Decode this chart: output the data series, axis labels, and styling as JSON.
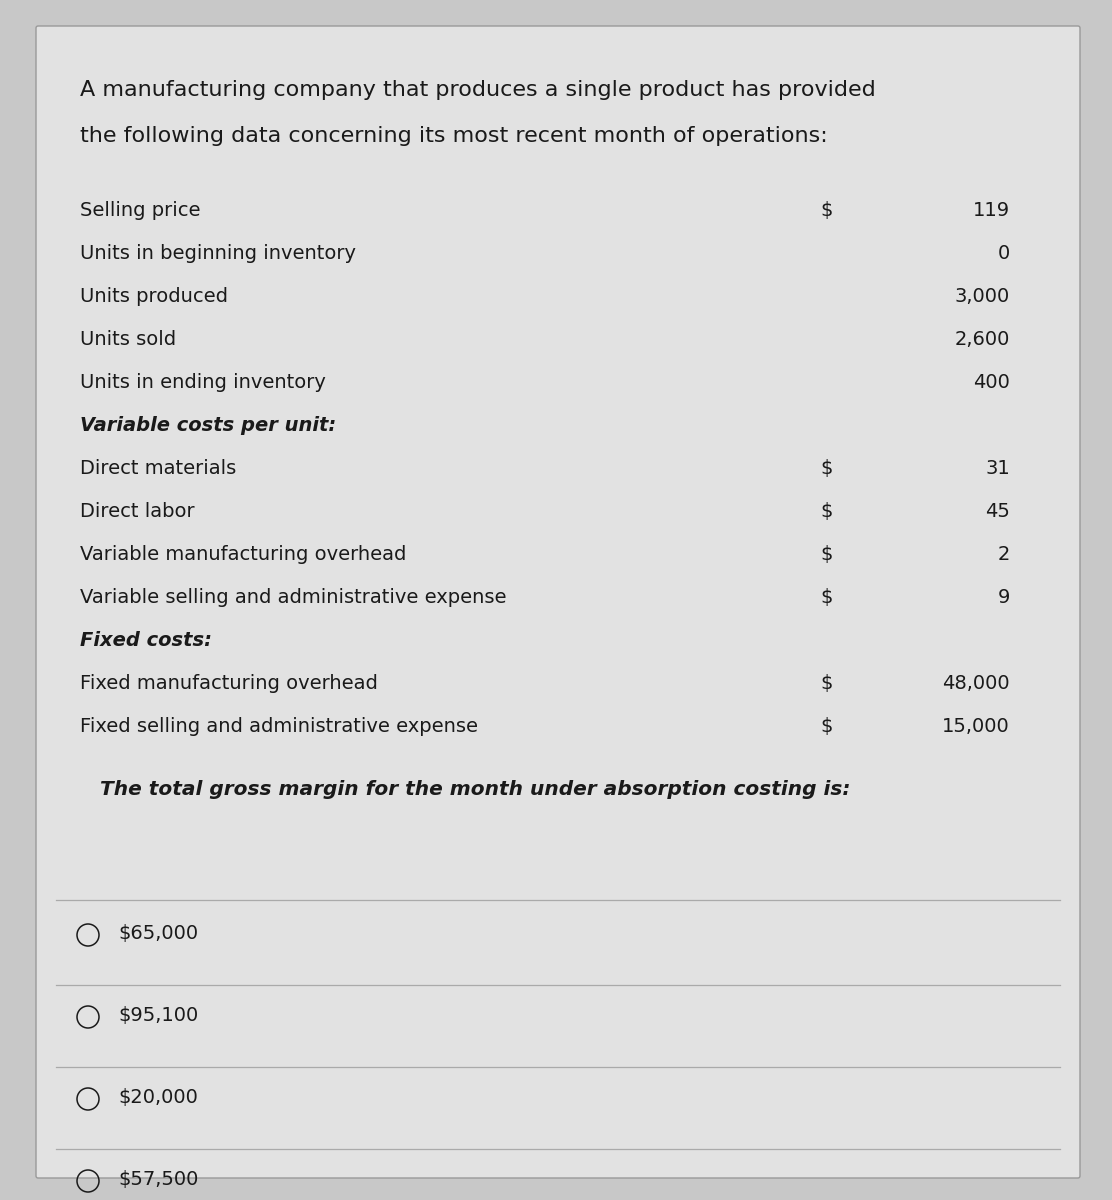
{
  "title_line1": "A manufacturing company that produces a single product has provided",
  "title_line2": "the following data concerning its most recent month of operations:",
  "bg_color": "#c8c8c8",
  "card_color": "#e2e2e2",
  "rows": [
    {
      "label": "Selling price",
      "col1": "$",
      "col2": "119",
      "indent": false
    },
    {
      "label": "Units in beginning inventory",
      "col1": "",
      "col2": "0",
      "indent": false
    },
    {
      "label": "Units produced",
      "col1": "",
      "col2": "3,000",
      "indent": false
    },
    {
      "label": "Units sold",
      "col1": "",
      "col2": "2,600",
      "indent": false
    },
    {
      "label": "Units in ending inventory",
      "col1": "",
      "col2": "400",
      "indent": false
    },
    {
      "label": "Variable costs per unit:",
      "col1": "",
      "col2": "",
      "indent": false
    },
    {
      "label": "Direct materials",
      "col1": "$",
      "col2": "31",
      "indent": false
    },
    {
      "label": "Direct labor",
      "col1": "$",
      "col2": "45",
      "indent": false
    },
    {
      "label": "Variable manufacturing overhead",
      "col1": "$",
      "col2": "2",
      "indent": false
    },
    {
      "label": "Variable selling and administrative expense",
      "col1": "$",
      "col2": "9",
      "indent": false
    },
    {
      "label": "Fixed costs:",
      "col1": "",
      "col2": "",
      "indent": false
    },
    {
      "label": "Fixed manufacturing overhead",
      "col1": "$",
      "col2": "48,000",
      "indent": false
    },
    {
      "label": "Fixed selling and administrative expense",
      "col1": "$",
      "col2": "15,000",
      "indent": false
    }
  ],
  "question": "The total gross margin for the month under absorption costing is:",
  "options": [
    "$65,000",
    "$95,100",
    "$20,000",
    "$57,500"
  ],
  "text_color": "#1a1a1a",
  "font_size_title": 16,
  "font_size_row": 14,
  "font_size_question": 14.5,
  "font_size_option": 14
}
